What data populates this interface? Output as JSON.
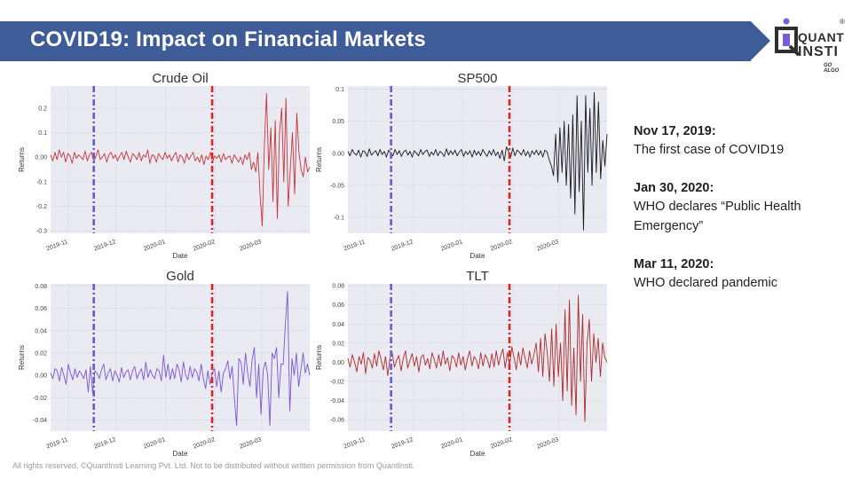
{
  "slide": {
    "title": "COVID19: Impact on Financial Markets",
    "footer": "All rights reserved, ©QuantInsti Learning Pvt. Ltd. Not to be distributed without written permission from QuantInsti.",
    "logo": {
      "line1": "QUANT",
      "line2": "INSTI",
      "tagline": "GO ALGO",
      "mark": "®",
      "icon": "quantinsti-logo-icon"
    },
    "colors": {
      "banner": "#3d5c98",
      "event_nov17": "#6a5acd",
      "event_jan30": "#d62728"
    }
  },
  "events": [
    {
      "date": "Nov 17, 2019:",
      "description": "The first case of COVID19"
    },
    {
      "date": "Jan 30, 2020:",
      "description": "WHO declares “Public Health Emergency”"
    },
    {
      "date": "Mar 11, 2020:",
      "description": "WHO declared pandemic"
    }
  ],
  "chart_data": [
    {
      "type": "line",
      "title": "Crude Oil",
      "xlabel": "Date",
      "ylabel": "Returns",
      "color": "#c9333a",
      "x_start": "2019-10-21",
      "x_end": "2020-03-31",
      "x_ticks": [
        "2019-11",
        "2019-12",
        "2020-01",
        "2020-02",
        "2020-03"
      ],
      "y_ticks": [
        0.2,
        0.1,
        0.0,
        -0.1,
        -0.2,
        -0.3
      ],
      "ylim": [
        -0.31,
        0.29
      ],
      "vlines": [
        "2019-11-17",
        "2020-01-30"
      ],
      "values": [
        0.01,
        -0.015,
        0.02,
        -0.01,
        0.03,
        0.0,
        0.02,
        -0.02,
        0.015,
        0.005,
        -0.025,
        0.02,
        -0.005,
        0.01,
        0.0,
        -0.01,
        0.025,
        -0.015,
        0.01,
        0.02,
        -0.02,
        0.005,
        0.03,
        -0.01,
        0.0,
        0.015,
        -0.02,
        0.01,
        0.02,
        -0.005,
        0.01,
        -0.015,
        0.005,
        0.02,
        -0.01,
        0.025,
        0.0,
        -0.02,
        0.015,
        0.005,
        -0.01,
        0.02,
        -0.015,
        0.01,
        0.0,
        0.03,
        -0.025,
        0.01,
        0.005,
        -0.02,
        0.015,
        0.0,
        -0.01,
        0.02,
        -0.005,
        0.01,
        -0.015,
        0.005,
        0.02,
        -0.02,
        0.01,
        0.0,
        -0.025,
        0.015,
        -0.01,
        0.005,
        0.02,
        -0.015,
        0.0,
        -0.02,
        0.01,
        -0.03,
        0.005,
        -0.01,
        0.02,
        -0.02,
        0.005,
        -0.005,
        0.01,
        -0.02,
        0.015,
        -0.01,
        0.0,
        0.005,
        -0.025,
        0.01,
        -0.005,
        -0.02,
        0.0,
        -0.03,
        0.01,
        -0.01,
        0.02,
        -0.05,
        -0.02,
        -0.06,
        0.02,
        -0.15,
        -0.28,
        0.05,
        0.26,
        -0.05,
        0.12,
        -0.18,
        0.15,
        -0.25,
        0.1,
        0.2,
        -0.1,
        0.24,
        -0.2,
        -0.05,
        0.1,
        -0.15,
        0.18,
        0.02,
        -0.05,
        -0.08,
        0.0,
        -0.06,
        -0.04
      ]
    },
    {
      "type": "line",
      "title": "SP500",
      "xlabel": "Date",
      "ylabel": "Returns",
      "color": "#1a1a1a",
      "x_start": "2019-10-21",
      "x_end": "2020-03-31",
      "x_ticks": [
        "2019-11",
        "2019-12",
        "2020-01",
        "2020-02",
        "2020-03"
      ],
      "y_ticks": [
        0.1,
        0.05,
        0.0,
        -0.05,
        -0.1
      ],
      "ylim": [
        -0.125,
        0.105
      ],
      "vlines": [
        "2019-11-17",
        "2020-01-30"
      ],
      "values": [
        0.003,
        -0.004,
        0.006,
        0.0,
        -0.003,
        0.005,
        -0.006,
        0.004,
        0.002,
        -0.005,
        0.007,
        -0.003,
        0.001,
        0.004,
        -0.004,
        0.006,
        -0.002,
        0.003,
        -0.006,
        0.005,
        0.0,
        -0.004,
        0.006,
        -0.002,
        0.004,
        -0.005,
        0.002,
        0.005,
        -0.003,
        0.003,
        -0.006,
        0.004,
        0.0,
        -0.004,
        0.006,
        -0.002,
        0.003,
        0.005,
        -0.005,
        0.002,
        -0.003,
        0.006,
        -0.004,
        0.003,
        0.0,
        -0.005,
        0.007,
        -0.003,
        0.004,
        -0.002,
        0.005,
        -0.004,
        0.002,
        0.006,
        -0.005,
        0.003,
        -0.002,
        0.004,
        -0.006,
        0.005,
        -0.003,
        0.003,
        -0.004,
        0.006,
        0.0,
        -0.005,
        0.004,
        -0.003,
        0.006,
        -0.004,
        0.002,
        -0.008,
        0.005,
        -0.012,
        0.01,
        0.003,
        -0.006,
        0.008,
        -0.004,
        0.005,
        0.002,
        -0.003,
        0.006,
        -0.004,
        0.003,
        -0.006,
        0.004,
        -0.002,
        0.005,
        -0.003,
        0.004,
        -0.006,
        0.005,
        0.002,
        -0.01,
        -0.02,
        -0.035,
        0.03,
        -0.045,
        0.04,
        -0.03,
        0.05,
        -0.05,
        0.045,
        -0.07,
        0.06,
        -0.095,
        0.09,
        -0.06,
        0.05,
        -0.12,
        0.09,
        -0.03,
        0.07,
        -0.05,
        0.095,
        -0.03,
        0.08,
        -0.04,
        0.02,
        -0.02,
        0.03
      ]
    },
    {
      "type": "line",
      "title": "Gold",
      "xlabel": "Date",
      "ylabel": "Returns",
      "color": "#7b55d6",
      "x_start": "2019-10-21",
      "x_end": "2020-03-31",
      "x_ticks": [
        "2019-11",
        "2019-12",
        "2020-01",
        "2020-02",
        "2020-03"
      ],
      "y_ticks": [
        0.08,
        0.06,
        0.04,
        0.02,
        0.0,
        -0.02,
        -0.04
      ],
      "ylim": [
        -0.05,
        0.082
      ],
      "vlines": [
        "2019-11-17",
        "2020-01-30"
      ],
      "values": [
        0.002,
        -0.003,
        0.006,
        0.004,
        -0.005,
        0.007,
        0.0,
        -0.008,
        0.01,
        0.002,
        -0.004,
        0.006,
        -0.002,
        0.004,
        0.001,
        -0.003,
        0.005,
        -0.015,
        0.008,
        -0.016,
        0.004,
        0.002,
        -0.003,
        0.005,
        0.01,
        -0.004,
        0.002,
        0.006,
        -0.005,
        0.004,
        0.0,
        -0.006,
        0.007,
        -0.002,
        0.003,
        0.005,
        -0.004,
        0.004,
        0.008,
        -0.003,
        0.002,
        0.006,
        -0.004,
        0.012,
        -0.002,
        0.005,
        0.0,
        -0.003,
        0.006,
        0.004,
        -0.005,
        0.018,
        -0.002,
        0.01,
        -0.004,
        0.006,
        -0.003,
        0.01,
        0.005,
        -0.006,
        0.012,
        0.0,
        -0.004,
        0.008,
        -0.002,
        0.006,
        0.003,
        -0.005,
        0.01,
        -0.003,
        -0.012,
        0.004,
        -0.008,
        0.002,
        0.006,
        -0.01,
        0.004,
        -0.015,
        0.002,
        0.006,
        0.013,
        -0.003,
        0.008,
        -0.02,
        -0.045,
        0.015,
        0.012,
        -0.008,
        0.02,
        0.002,
        -0.01,
        0.014,
        0.025,
        -0.02,
        0.01,
        -0.035,
        0.005,
        0.012,
        0.0,
        -0.045,
        0.02,
        0.015,
        0.025,
        -0.02,
        0.01,
        0.01,
        0.045,
        0.075,
        -0.032,
        0.015,
        0.0,
        0.02,
        -0.01,
        0.005,
        0.02,
        0.002,
        0.01,
        0.0
      ]
    },
    {
      "type": "line",
      "title": "TLT",
      "xlabel": "Date",
      "ylabel": "Returns",
      "color": "#b02a2a",
      "x_start": "2019-10-21",
      "x_end": "2020-03-31",
      "x_ticks": [
        "2019-11",
        "2019-12",
        "2020-01",
        "2020-02",
        "2020-03"
      ],
      "y_ticks": [
        0.08,
        0.06,
        0.04,
        0.02,
        0.0,
        -0.02,
        -0.04,
        -0.06
      ],
      "ylim": [
        -0.072,
        0.082
      ],
      "vlines": [
        "2019-11-17",
        "2020-01-30"
      ],
      "values": [
        0.004,
        -0.005,
        0.008,
        0.0,
        -0.01,
        0.006,
        -0.002,
        0.01,
        -0.012,
        0.005,
        0.002,
        -0.006,
        0.009,
        -0.004,
        0.012,
        0.003,
        -0.008,
        0.006,
        -0.014,
        0.004,
        0.01,
        -0.005,
        0.002,
        0.007,
        -0.009,
        0.004,
        0.012,
        -0.006,
        0.002,
        0.009,
        -0.004,
        0.006,
        -0.01,
        0.005,
        0.008,
        -0.003,
        0.004,
        -0.007,
        0.01,
        0.003,
        -0.006,
        0.008,
        -0.004,
        0.012,
        -0.002,
        0.005,
        -0.009,
        0.007,
        0.004,
        -0.005,
        0.01,
        -0.003,
        0.006,
        -0.008,
        0.004,
        0.012,
        -0.004,
        0.006,
        0.002,
        -0.007,
        0.01,
        -0.004,
        0.008,
        0.003,
        -0.006,
        0.009,
        -0.005,
        0.012,
        -0.003,
        0.007,
        0.014,
        -0.006,
        0.01,
        -0.004,
        0.016,
        0.005,
        -0.008,
        0.011,
        -0.003,
        0.015,
        0.004,
        -0.006,
        0.012,
        -0.002,
        0.008,
        0.02,
        -0.01,
        0.025,
        -0.015,
        0.03,
        0.01,
        -0.02,
        0.035,
        -0.025,
        0.04,
        -0.015,
        0.02,
        -0.04,
        0.055,
        -0.03,
        0.065,
        -0.045,
        0.015,
        -0.055,
        0.07,
        -0.02,
        0.05,
        -0.062,
        0.02,
        0.045,
        -0.02,
        0.03,
        0.0,
        0.025,
        -0.015,
        0.02,
        0.005,
        0.0
      ]
    }
  ]
}
